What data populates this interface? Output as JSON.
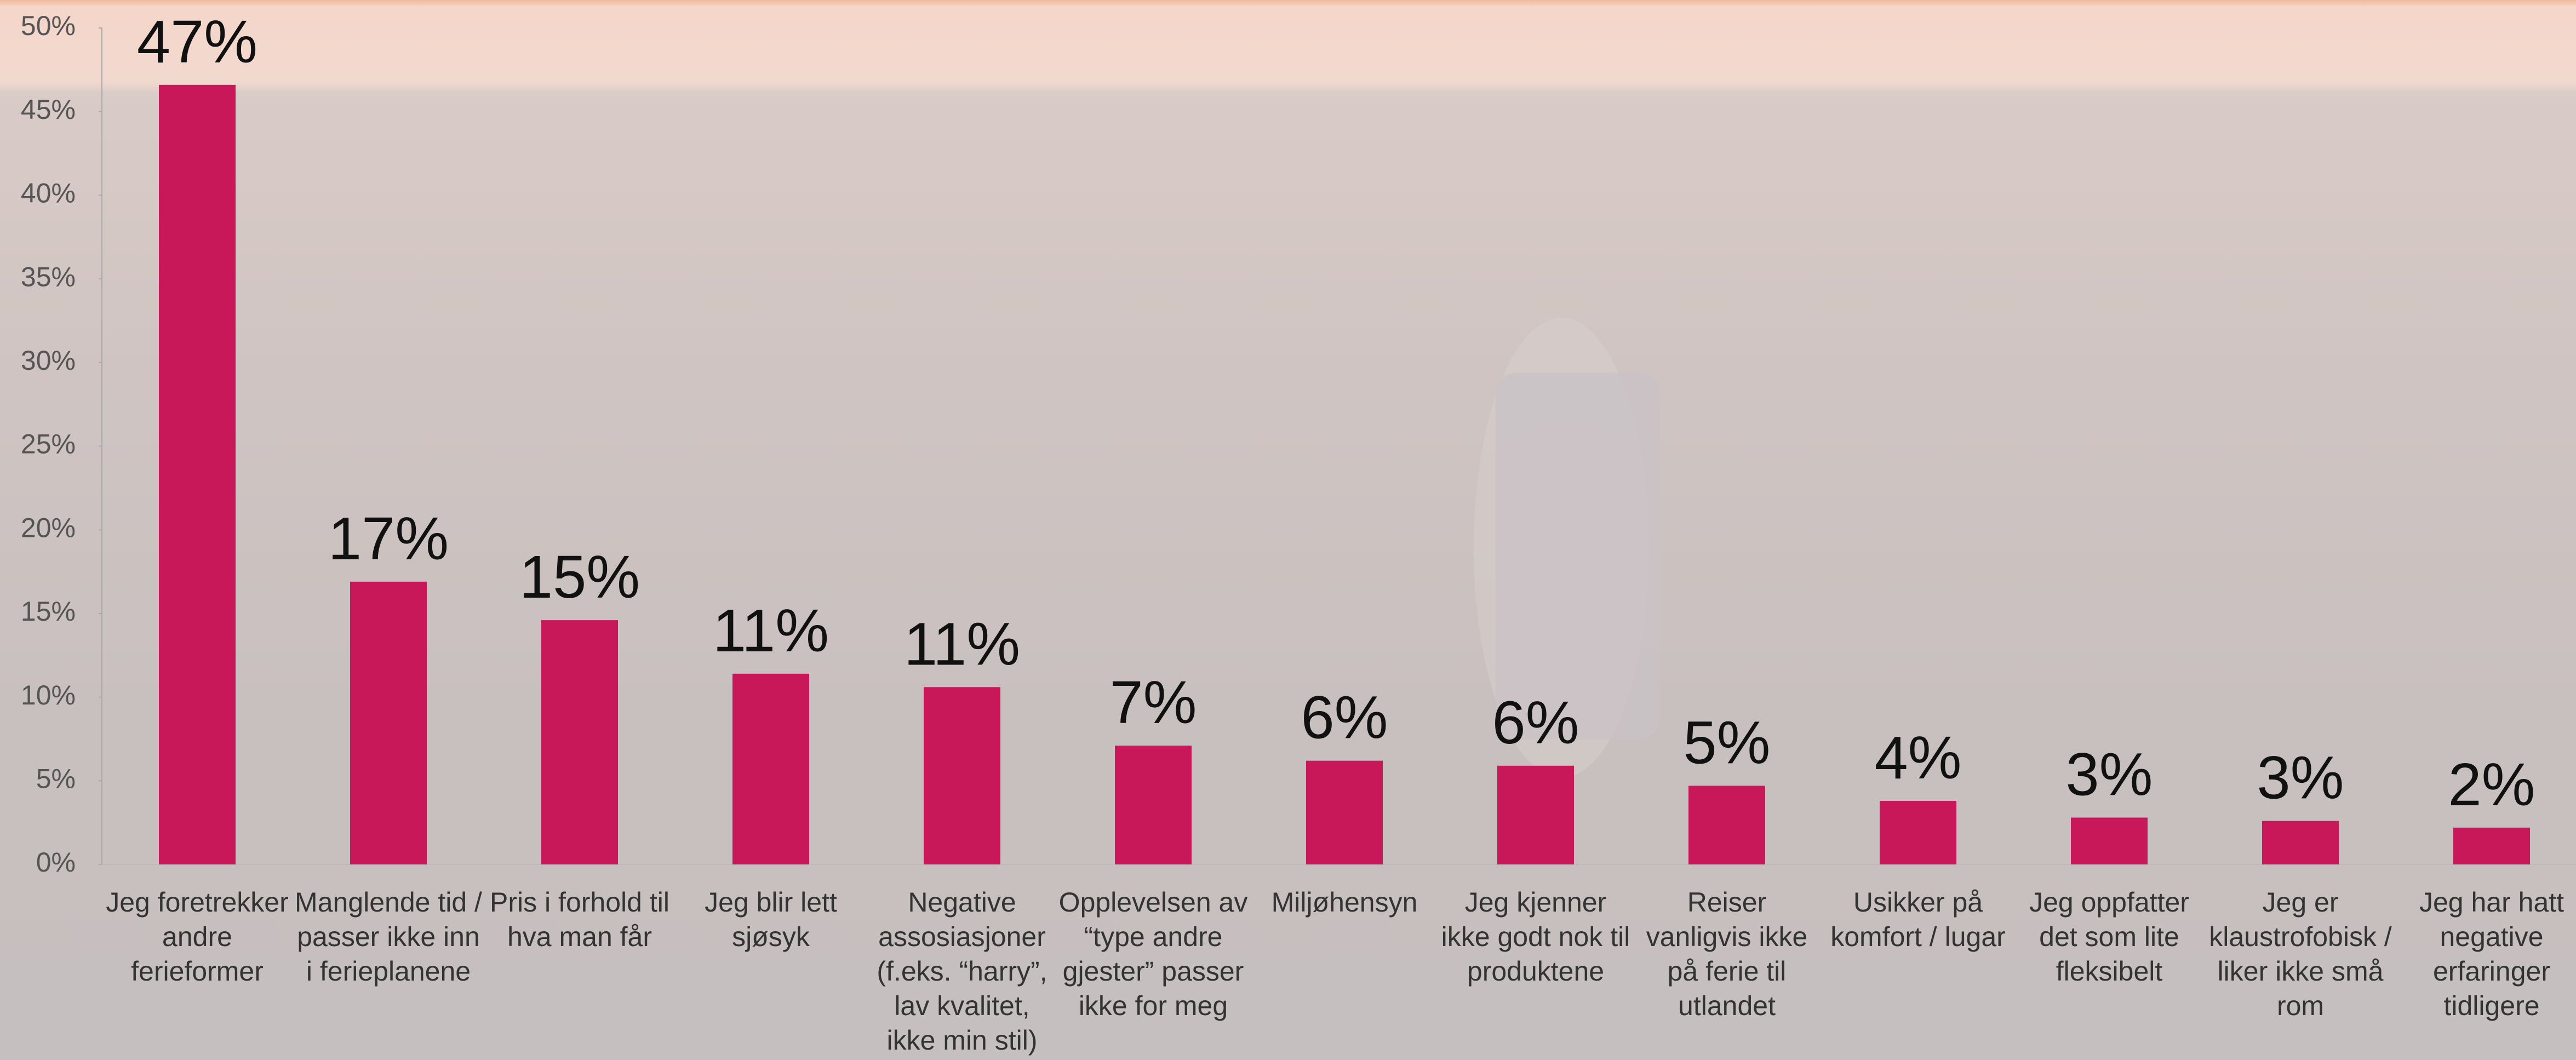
{
  "chart_data": {
    "type": "bar",
    "categories": [
      "Jeg foretrekker andre ferieformer",
      "Manglende tid / passer ikke inn i ferieplanene",
      "Pris i forhold til hva man får",
      "Jeg blir lett sjøsyk",
      "Negative assosiasjoner (f.eks. “harry”, lav kvalitet, ikke min stil)",
      "Opplevelsen av “type andre gjester” passer ikke for meg",
      "Miljøhensyn",
      "Jeg kjenner ikke godt nok til produktene",
      "Reiser vanligvis ikke på ferie til utlandet",
      "Usikker på komfort / lugar",
      "Jeg oppfatter det som lite fleksibelt",
      "Jeg er klaustrofobisk / liker ikke små rom",
      "Jeg har hatt negative erfaringer tidligere"
    ],
    "values": [
      46.6,
      16.9,
      14.6,
      11.4,
      10.6,
      7.1,
      6.2,
      5.9,
      4.7,
      3.8,
      2.8,
      2.6,
      2.2
    ],
    "value_labels": [
      "47%",
      "17%",
      "15%",
      "11%",
      "11%",
      "7%",
      "6%",
      "6%",
      "5%",
      "4%",
      "3%",
      "3%",
      "2%"
    ],
    "color": "#c8185a",
    "ylim": [
      0,
      50
    ],
    "yticks": [
      {
        "value": 0,
        "label": "0%"
      },
      {
        "value": 5,
        "label": "5%"
      },
      {
        "value": 10,
        "label": "10%"
      },
      {
        "value": 15,
        "label": "15%"
      },
      {
        "value": 20,
        "label": "20%"
      },
      {
        "value": 25,
        "label": "25%"
      },
      {
        "value": 30,
        "label": "30%"
      },
      {
        "value": 35,
        "label": "35%"
      },
      {
        "value": 40,
        "label": "40%"
      },
      {
        "value": 45,
        "label": "45%"
      },
      {
        "value": 50,
        "label": "50%"
      }
    ],
    "grid": false
  }
}
